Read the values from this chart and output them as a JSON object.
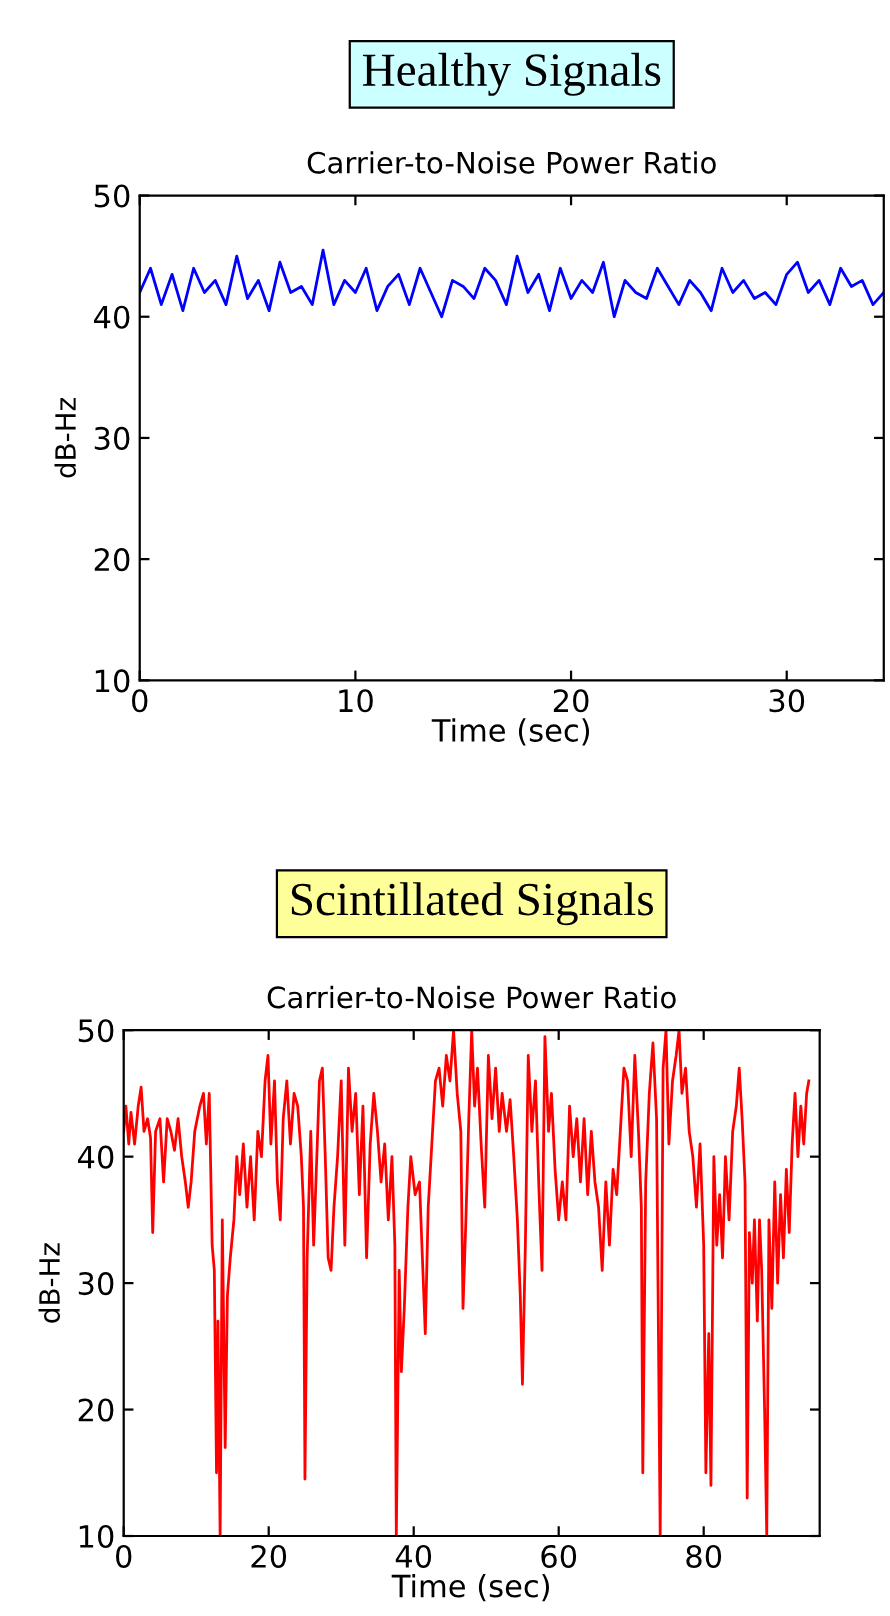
{
  "chart_data": [
    {
      "type": "line",
      "title": "Healthy Signals",
      "subtitle": "Carrier-to-Noise Power Ratio",
      "xlabel": "Time (sec)",
      "ylabel": "dB-Hz",
      "xlim": [
        0,
        34.5
      ],
      "xticks": [
        0,
        10,
        20,
        30
      ],
      "ylim": [
        10,
        50
      ],
      "yticks": [
        10,
        20,
        30,
        40,
        50
      ],
      "grid": false,
      "series": [
        {
          "color": "#0000ff",
          "x": [
            0,
            0.5,
            1,
            1.5,
            2,
            2.5,
            3,
            3.5,
            4,
            4.5,
            5,
            5.5,
            6,
            6.5,
            7,
            7.5,
            8,
            8.5,
            9,
            9.5,
            10,
            10.5,
            11,
            11.5,
            12,
            12.5,
            13,
            13.5,
            14,
            14.5,
            15,
            15.5,
            16,
            16.5,
            17,
            17.5,
            18,
            18.5,
            19,
            19.5,
            20,
            20.5,
            21,
            21.5,
            22,
            22.5,
            23,
            23.5,
            24,
            24.5,
            25,
            25.5,
            26,
            26.5,
            27,
            27.5,
            28,
            28.5,
            29,
            29.5,
            30,
            30.5,
            31,
            31.5,
            32,
            32.5,
            33,
            33.5,
            34,
            34.5
          ],
          "values": [
            42,
            44,
            41,
            43.5,
            40.5,
            44,
            42,
            43,
            41,
            45,
            41.5,
            43,
            40.5,
            44.5,
            42,
            42.5,
            41,
            45.5,
            41,
            43,
            42,
            44,
            40.5,
            42.5,
            43.5,
            41,
            44,
            42,
            40,
            43,
            42.5,
            41.5,
            44,
            43,
            41,
            45,
            42,
            43.5,
            40.5,
            44,
            41.5,
            43,
            42,
            44.5,
            40,
            43,
            42,
            41.5,
            44,
            42.5,
            41,
            43,
            42,
            40.5,
            44,
            42,
            43,
            41.5,
            42,
            41,
            43.5,
            44.5,
            42,
            43,
            41,
            44,
            42.5,
            43,
            41,
            42
          ]
        }
      ]
    },
    {
      "type": "line",
      "title": "Scintillated Signals",
      "subtitle": "Carrier-to-Noise Power Ratio",
      "xlabel": "Time (sec)",
      "ylabel": "dB-Hz",
      "xlim": [
        0,
        96
      ],
      "xticks": [
        0,
        20,
        40,
        60,
        80
      ],
      "ylim": [
        10,
        50
      ],
      "yticks": [
        10,
        20,
        30,
        40,
        50
      ],
      "grid": false,
      "series": [
        {
          "color": "#ff0000",
          "x": [
            0,
            0.3,
            0.7,
            1.0,
            1.5,
            2.0,
            2.4,
            2.8,
            3.3,
            3.7,
            4.0,
            4.4,
            5.0,
            5.5,
            6.0,
            6.5,
            7.0,
            7.5,
            8.0,
            8.5,
            8.9,
            9.3,
            9.8,
            10.5,
            11.0,
            11.4,
            11.8,
            12.2,
            12.5,
            12.8,
            13.0,
            13.3,
            13.6,
            14.0,
            14.3,
            14.7,
            15.2,
            15.6,
            16.0,
            16.5,
            17.0,
            17.5,
            18.0,
            18.5,
            19.0,
            19.5,
            19.9,
            20.3,
            20.8,
            21.2,
            21.6,
            22.0,
            22.5,
            23.0,
            23.5,
            24.0,
            24.5,
            24.8,
            25.0,
            25.3,
            25.8,
            26.2,
            26.7,
            27.0,
            27.4,
            27.8,
            28.2,
            28.6,
            29.0,
            29.5,
            30.0,
            30.5,
            31.0,
            31.5,
            32.0,
            32.5,
            33.0,
            33.5,
            34.0,
            34.5,
            35.0,
            35.5,
            36.0,
            36.5,
            37.0,
            37.4,
            37.6,
            38.0,
            38.3,
            38.7,
            39.2,
            39.6,
            40.2,
            40.8,
            41.2,
            41.6,
            42.0,
            42.6,
            43.0,
            43.5,
            44.0,
            44.5,
            45.0,
            45.5,
            46.0,
            46.5,
            46.8,
            47.2,
            47.6,
            48.0,
            48.4,
            48.8,
            49.3,
            49.8,
            50.3,
            50.8,
            51.3,
            51.8,
            52.2,
            52.8,
            53.3,
            53.8,
            54.3,
            54.7,
            55.0,
            55.4,
            55.8,
            56.3,
            56.8,
            57.3,
            57.7,
            58.1,
            58.6,
            59.0,
            59.5,
            60.0,
            60.5,
            61.0,
            61.5,
            62.0,
            62.5,
            63.0,
            63.5,
            64.0,
            64.5,
            65.0,
            65.5,
            66.0,
            66.5,
            67.0,
            67.5,
            68.0,
            68.5,
            69.0,
            69.5,
            70.0,
            70.5,
            71.0,
            71.4,
            71.6,
            72.0,
            72.5,
            73.0,
            73.5,
            74.0,
            74.4,
            74.8,
            75.2,
            75.7,
            76.2,
            76.6,
            77.0,
            77.5,
            78.0,
            78.5,
            79.0,
            79.5,
            80.0,
            80.3,
            80.7,
            81.0,
            81.4,
            81.8,
            82.2,
            82.6,
            83.0,
            83.5,
            84.0,
            84.5,
            84.9,
            85.3,
            85.7,
            86.0,
            86.3,
            86.7,
            87.0,
            87.4,
            87.7,
            88.0,
            88.4,
            88.7,
            89.0,
            89.4,
            89.8,
            90.2,
            90.6,
            91.0,
            91.4,
            91.8,
            92.2,
            92.6,
            93.0,
            93.4,
            93.8,
            94.2,
            94.5
          ],
          "values": [
            42,
            44,
            41,
            43.5,
            41,
            44,
            45.5,
            42,
            43,
            41.5,
            34,
            42,
            43,
            38,
            43,
            42,
            40.5,
            43,
            40,
            38,
            36,
            38,
            42,
            44,
            45,
            41,
            45,
            33,
            31,
            15,
            27,
            10,
            35,
            17,
            29,
            32,
            35,
            40,
            37,
            41,
            36,
            40,
            35,
            42,
            40,
            46,
            48,
            41,
            46,
            38,
            35,
            43,
            46,
            41,
            45,
            44,
            40,
            36,
            14.5,
            32,
            42,
            33,
            41,
            46,
            47,
            40,
            32,
            31,
            36,
            40,
            46,
            33,
            47,
            42,
            45,
            37,
            44,
            32,
            41,
            45,
            42,
            38,
            41,
            35,
            40,
            33,
            10,
            31,
            23,
            28,
            36,
            40,
            37,
            38,
            32,
            26,
            36,
            42,
            46,
            47,
            44,
            48,
            46,
            50,
            45,
            42,
            28,
            35,
            43,
            50,
            44,
            47,
            41,
            36,
            48,
            43,
            47,
            42,
            45,
            42,
            44.5,
            40,
            35,
            29,
            22,
            33,
            48,
            42,
            46,
            37,
            31,
            49.5,
            42,
            45,
            39,
            35,
            38,
            35,
            44,
            40,
            43,
            38,
            43,
            37,
            42,
            38,
            36,
            31,
            38,
            33,
            39,
            37,
            42,
            47,
            46,
            40,
            48,
            42,
            36,
            15,
            38,
            45,
            49,
            43,
            10,
            47,
            50,
            41,
            46,
            48,
            50,
            45,
            47,
            42,
            40,
            36,
            41,
            33,
            15,
            26,
            14,
            40,
            33,
            37,
            32,
            40,
            35,
            42,
            44,
            47,
            43,
            38,
            13,
            34,
            30,
            35,
            27,
            35,
            31,
            20,
            10,
            35,
            28,
            38,
            30,
            37,
            32,
            39,
            34,
            41,
            45,
            40,
            44,
            41,
            45,
            46
          ]
        }
      ]
    }
  ]
}
